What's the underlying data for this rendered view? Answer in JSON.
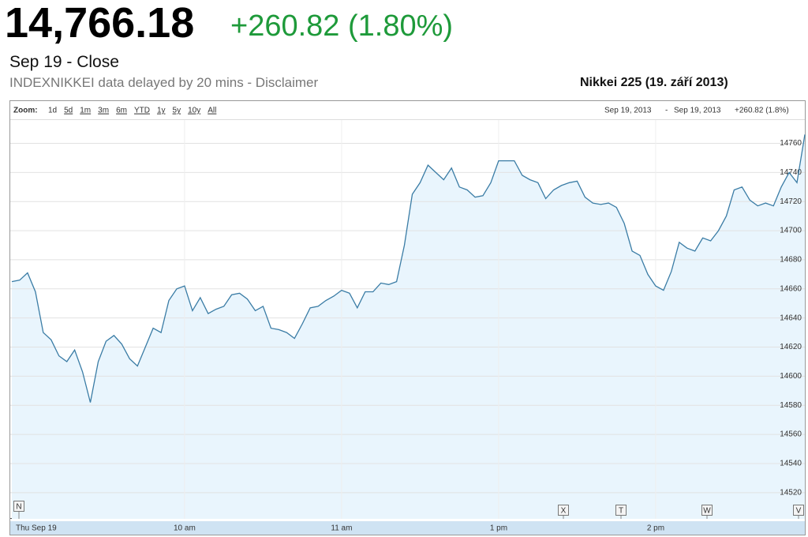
{
  "header": {
    "price": "14,766.18",
    "change": "+260.82 (1.80%)",
    "date": "Sep 19 - Close",
    "source": "INDEXNIKKEI data delayed by 20 mins - Disclaimer",
    "chart_title": "Nikkei 225 (19. září 2013)"
  },
  "toolbar": {
    "zoom_label": "Zoom:",
    "zoom_options": [
      "1d",
      "5d",
      "1m",
      "3m",
      "6m",
      "YTD",
      "1y",
      "5y",
      "10y",
      "All"
    ],
    "range_start": "Sep 19, 2013",
    "range_separator": "-",
    "range_end": "Sep 19, 2013",
    "range_change": "+260.82 (1.8%)"
  },
  "events": [
    "N",
    "X",
    "T",
    "W",
    "V"
  ],
  "chart_data": {
    "type": "line",
    "categories": [
      "Thu Sep 19",
      null,
      null,
      null,
      null,
      null,
      null,
      null,
      null,
      null,
      null,
      null,
      null,
      null,
      null,
      null,
      null,
      null,
      null,
      null,
      null,
      null,
      "10 am",
      null,
      null,
      null,
      null,
      null,
      null,
      null,
      null,
      null,
      null,
      null,
      null,
      null,
      null,
      null,
      null,
      null,
      null,
      null,
      "11 am",
      null,
      null,
      null,
      null,
      null,
      null,
      null,
      null,
      null,
      null,
      null,
      null,
      null,
      null,
      null,
      null,
      null,
      null,
      null,
      "1 pm",
      null,
      null,
      null,
      null,
      null,
      null,
      null,
      null,
      null,
      null,
      null,
      null,
      null,
      null,
      null,
      null,
      null,
      null,
      null,
      "2 pm",
      null,
      null,
      null,
      null,
      null,
      null,
      null,
      null,
      null,
      null,
      null,
      null,
      null,
      null,
      null,
      null,
      null,
      null,
      null
    ],
    "series": [
      {
        "name": "Nikkei 225",
        "color": "#3a7ca5",
        "values": [
          14665,
          14666,
          14671,
          14658,
          14630,
          14625,
          14614,
          14610,
          14618,
          14603,
          14582,
          14610,
          14624,
          14628,
          14622,
          14612,
          14607,
          14620,
          14633,
          14630,
          14652,
          14660,
          14662,
          14645,
          14654,
          14643,
          14646,
          14648,
          14656,
          14657,
          14653,
          14645,
          14648,
          14633,
          14632,
          14630,
          14626,
          14636,
          14647,
          14648,
          14652,
          14655,
          14659,
          14657,
          14647,
          14658,
          14658,
          14664,
          14663,
          14665,
          14690,
          14725,
          14733,
          14745,
          14740,
          14735,
          14743,
          14730,
          14728,
          14723,
          14724,
          14733,
          14748,
          14748,
          14748,
          14738,
          14735,
          14733,
          14722,
          14728,
          14731,
          14733,
          14734,
          14723,
          14719,
          14718,
          14719,
          14716,
          14705,
          14686,
          14683,
          14670,
          14662,
          14659,
          14672,
          14692,
          14688,
          14686,
          14695,
          14693,
          14700,
          14710,
          14728,
          14730,
          14721,
          14717,
          14719,
          14717,
          14730,
          14740,
          14733,
          14766
        ]
      }
    ],
    "ylim": [
      14502,
      14776
    ],
    "yticks": [
      14520,
      14540,
      14560,
      14580,
      14600,
      14620,
      14640,
      14660,
      14680,
      14700,
      14720,
      14740,
      14760
    ],
    "grid": true,
    "area_fill": "#e9f5fd"
  }
}
